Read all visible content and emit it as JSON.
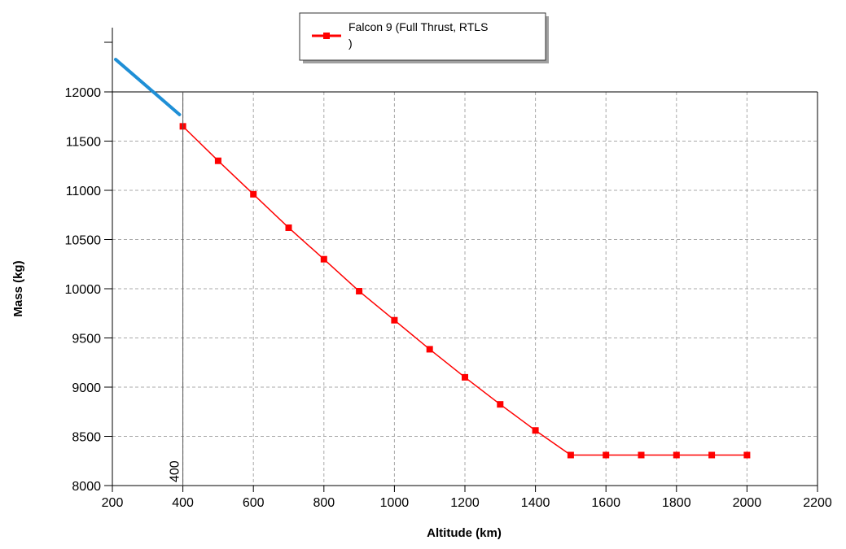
{
  "chart_data": {
    "type": "line",
    "title": "",
    "xlabel": "Altitude (km)",
    "ylabel": "Mass (kg)",
    "xlim": [
      200,
      2200
    ],
    "ylim": [
      8000,
      12000
    ],
    "x_ticks": [
      200,
      400,
      600,
      800,
      1000,
      1200,
      1400,
      1600,
      1800,
      2000,
      2200
    ],
    "y_ticks": [
      8000,
      8500,
      9000,
      9500,
      10000,
      10500,
      11000,
      11500,
      12000
    ],
    "grid": true,
    "legend_position": "top-center",
    "series": [
      {
        "name": "Falcon 9 (Full Thrust, RTLS\n)",
        "name_line1": "Falcon 9 (Full Thrust, RTLS",
        "name_line2": ")",
        "color": "#ff0000",
        "marker": "square",
        "x": [
          400,
          500,
          600,
          700,
          800,
          900,
          1000,
          1100,
          1200,
          1300,
          1400,
          1500,
          1600,
          1700,
          1800,
          1900,
          2000
        ],
        "y": [
          11650,
          11300,
          10960,
          10620,
          10300,
          9975,
          9680,
          9385,
          9100,
          8825,
          8560,
          8310,
          8310,
          8310,
          8310,
          8310,
          8310
        ]
      }
    ],
    "annotations": [
      {
        "type": "vertical-line",
        "x": 400,
        "label": "400"
      }
    ],
    "extra_marks": [
      {
        "type": "blue-line",
        "color": "#1f8fd6",
        "from": [
          200,
          12330
        ],
        "to": [
          395,
          11770
        ]
      }
    ]
  }
}
